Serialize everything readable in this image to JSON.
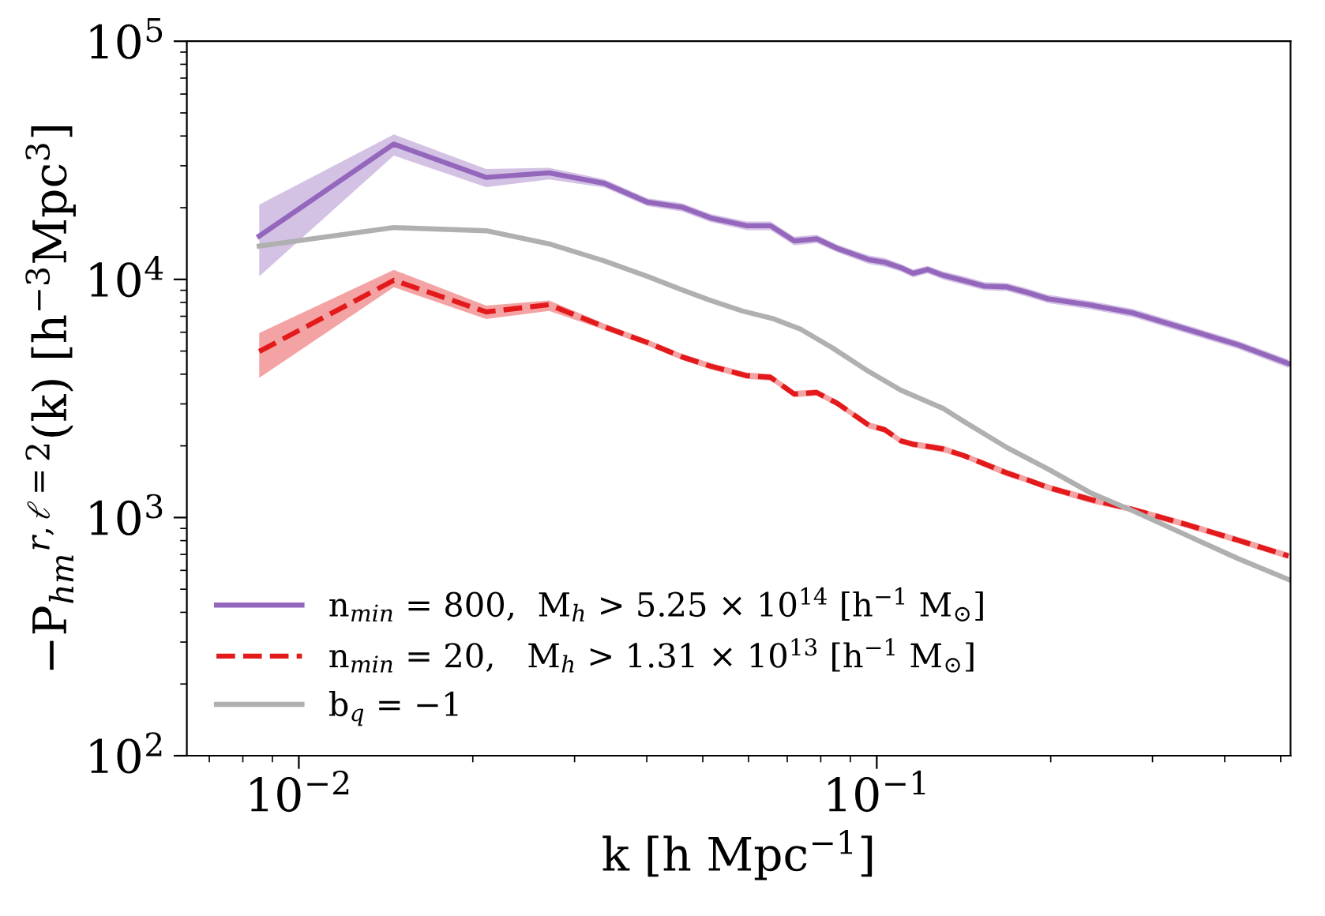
{
  "chart_data": {
    "type": "line",
    "xlabel": "k [h Mpc$^{−1}$]",
    "ylabel": "−P$_{hm}$$^{r,ℓ=2}$(k) [h$^{−3}$Mpc$^{3}$]",
    "log": "xy",
    "xlim": [
      0.0064,
      0.52
    ],
    "ylim": [
      100,
      100000
    ],
    "xticks": [
      {
        "value": 0.01,
        "label": "10$^{−2}$"
      },
      {
        "value": 0.1,
        "label": "10$^{−1}$"
      }
    ],
    "yticks": [
      {
        "value": 100,
        "label": "10$^{2}$"
      },
      {
        "value": 1000,
        "label": "10$^{3}$"
      },
      {
        "value": 10000,
        "label": "10$^{4}$"
      },
      {
        "value": 100000,
        "label": "10$^{5}$"
      }
    ],
    "legend": "lower left",
    "grid": false,
    "marker": "none",
    "series": [
      {
        "name": "n$_{min}$ = 800,  M$_{h}$ > 5.25 × 10$^{14}$ [h$^{−1}$ M$_{⊙}$]",
        "color": "#9467bd",
        "line_style": "solid",
        "x": [
          0.00854,
          0.0146,
          0.0211,
          0.0271,
          0.0338,
          0.0401,
          0.046,
          0.0516,
          0.0596,
          0.0655,
          0.072,
          0.0787,
          0.0854,
          0.0969,
          0.1032,
          0.11,
          0.1156,
          0.1224,
          0.1303,
          0.1415,
          0.1536,
          0.1678,
          0.1821,
          0.1977,
          0.2344,
          0.2779,
          0.3421,
          0.4214,
          0.5157
        ],
        "values": [
          15200,
          37000,
          26800,
          28000,
          25300,
          21100,
          20100,
          18100,
          16800,
          16800,
          14500,
          14800,
          13500,
          12100,
          11800,
          11200,
          10600,
          11000,
          10400,
          9880,
          9370,
          9300,
          8810,
          8290,
          7800,
          7220,
          6200,
          5320,
          4430
        ],
        "lower": [
          10300,
          33100,
          24400,
          26300,
          24300,
          20300,
          19300,
          17400,
          16100,
          16100,
          13900,
          14200,
          13000,
          11600,
          11300,
          10800,
          10200,
          10600,
          9980,
          9480,
          9000,
          8930,
          8460,
          7960,
          7490,
          6930,
          5950,
          5110,
          4250
        ],
        "upper": [
          20600,
          40600,
          29100,
          29400,
          26300,
          21900,
          20900,
          18800,
          17500,
          17500,
          15100,
          15400,
          14000,
          12600,
          12300,
          11600,
          11000,
          11400,
          10800,
          10300,
          9740,
          9670,
          9160,
          8620,
          8110,
          7510,
          6450,
          5530,
          4610
        ]
      },
      {
        "name": "n$_{min}$ = 20,   M$_{h}$ > 1.31 × 10$^{13}$ [h$^{−1}$ M$_{⊙}$]",
        "color": "#e31a1c",
        "line_style": "dashed",
        "x": [
          0.00854,
          0.0146,
          0.0211,
          0.0271,
          0.0338,
          0.0401,
          0.046,
          0.0516,
          0.0596,
          0.0655,
          0.072,
          0.0787,
          0.0854,
          0.0969,
          0.1032,
          0.11,
          0.1156,
          0.1224,
          0.1303,
          0.1415,
          0.1536,
          0.1678,
          0.1821,
          0.1977,
          0.2344,
          0.2779,
          0.3421,
          0.4214,
          0.5157
        ],
        "values": [
          4980,
          9910,
          7300,
          7830,
          6320,
          5430,
          4730,
          4320,
          3940,
          3880,
          3300,
          3350,
          3020,
          2440,
          2340,
          2100,
          2030,
          1990,
          1940,
          1820,
          1680,
          1540,
          1440,
          1340,
          1190,
          1080,
          937,
          804,
          690
        ],
        "lower": [
          3860,
          9270,
          6820,
          7370,
          6130,
          5270,
          4590,
          4190,
          3820,
          3760,
          3200,
          3250,
          2930,
          2370,
          2270,
          2040,
          1970,
          1930,
          1880,
          1770,
          1630,
          1490,
          1400,
          1300,
          1150,
          1050,
          909,
          780,
          669
        ],
        "upper": [
          5950,
          10960,
          7760,
          8160,
          6510,
          5590,
          4870,
          4450,
          4060,
          4000,
          3400,
          3450,
          3110,
          2510,
          2410,
          2160,
          2090,
          2050,
          2000,
          1870,
          1730,
          1590,
          1480,
          1380,
          1230,
          1110,
          965,
          828,
          711
        ]
      },
      {
        "name": "b$_{q}$ = −1",
        "color": "#b0b0b0",
        "line_style": "solid",
        "x": [
          0.00854,
          0.0146,
          0.0211,
          0.0271,
          0.0338,
          0.0401,
          0.046,
          0.0516,
          0.0585,
          0.0664,
          0.0739,
          0.0838,
          0.0969,
          0.11,
          0.1303,
          0.1415,
          0.1678,
          0.1977,
          0.2344,
          0.2779,
          0.3421,
          0.4214,
          0.5157
        ],
        "values": [
          13800,
          16500,
          16000,
          14100,
          11950,
          10300,
          9040,
          8160,
          7370,
          6820,
          6170,
          5160,
          4100,
          3430,
          2870,
          2530,
          1970,
          1600,
          1270,
          1065,
          847,
          673,
          549
        ]
      }
    ]
  }
}
